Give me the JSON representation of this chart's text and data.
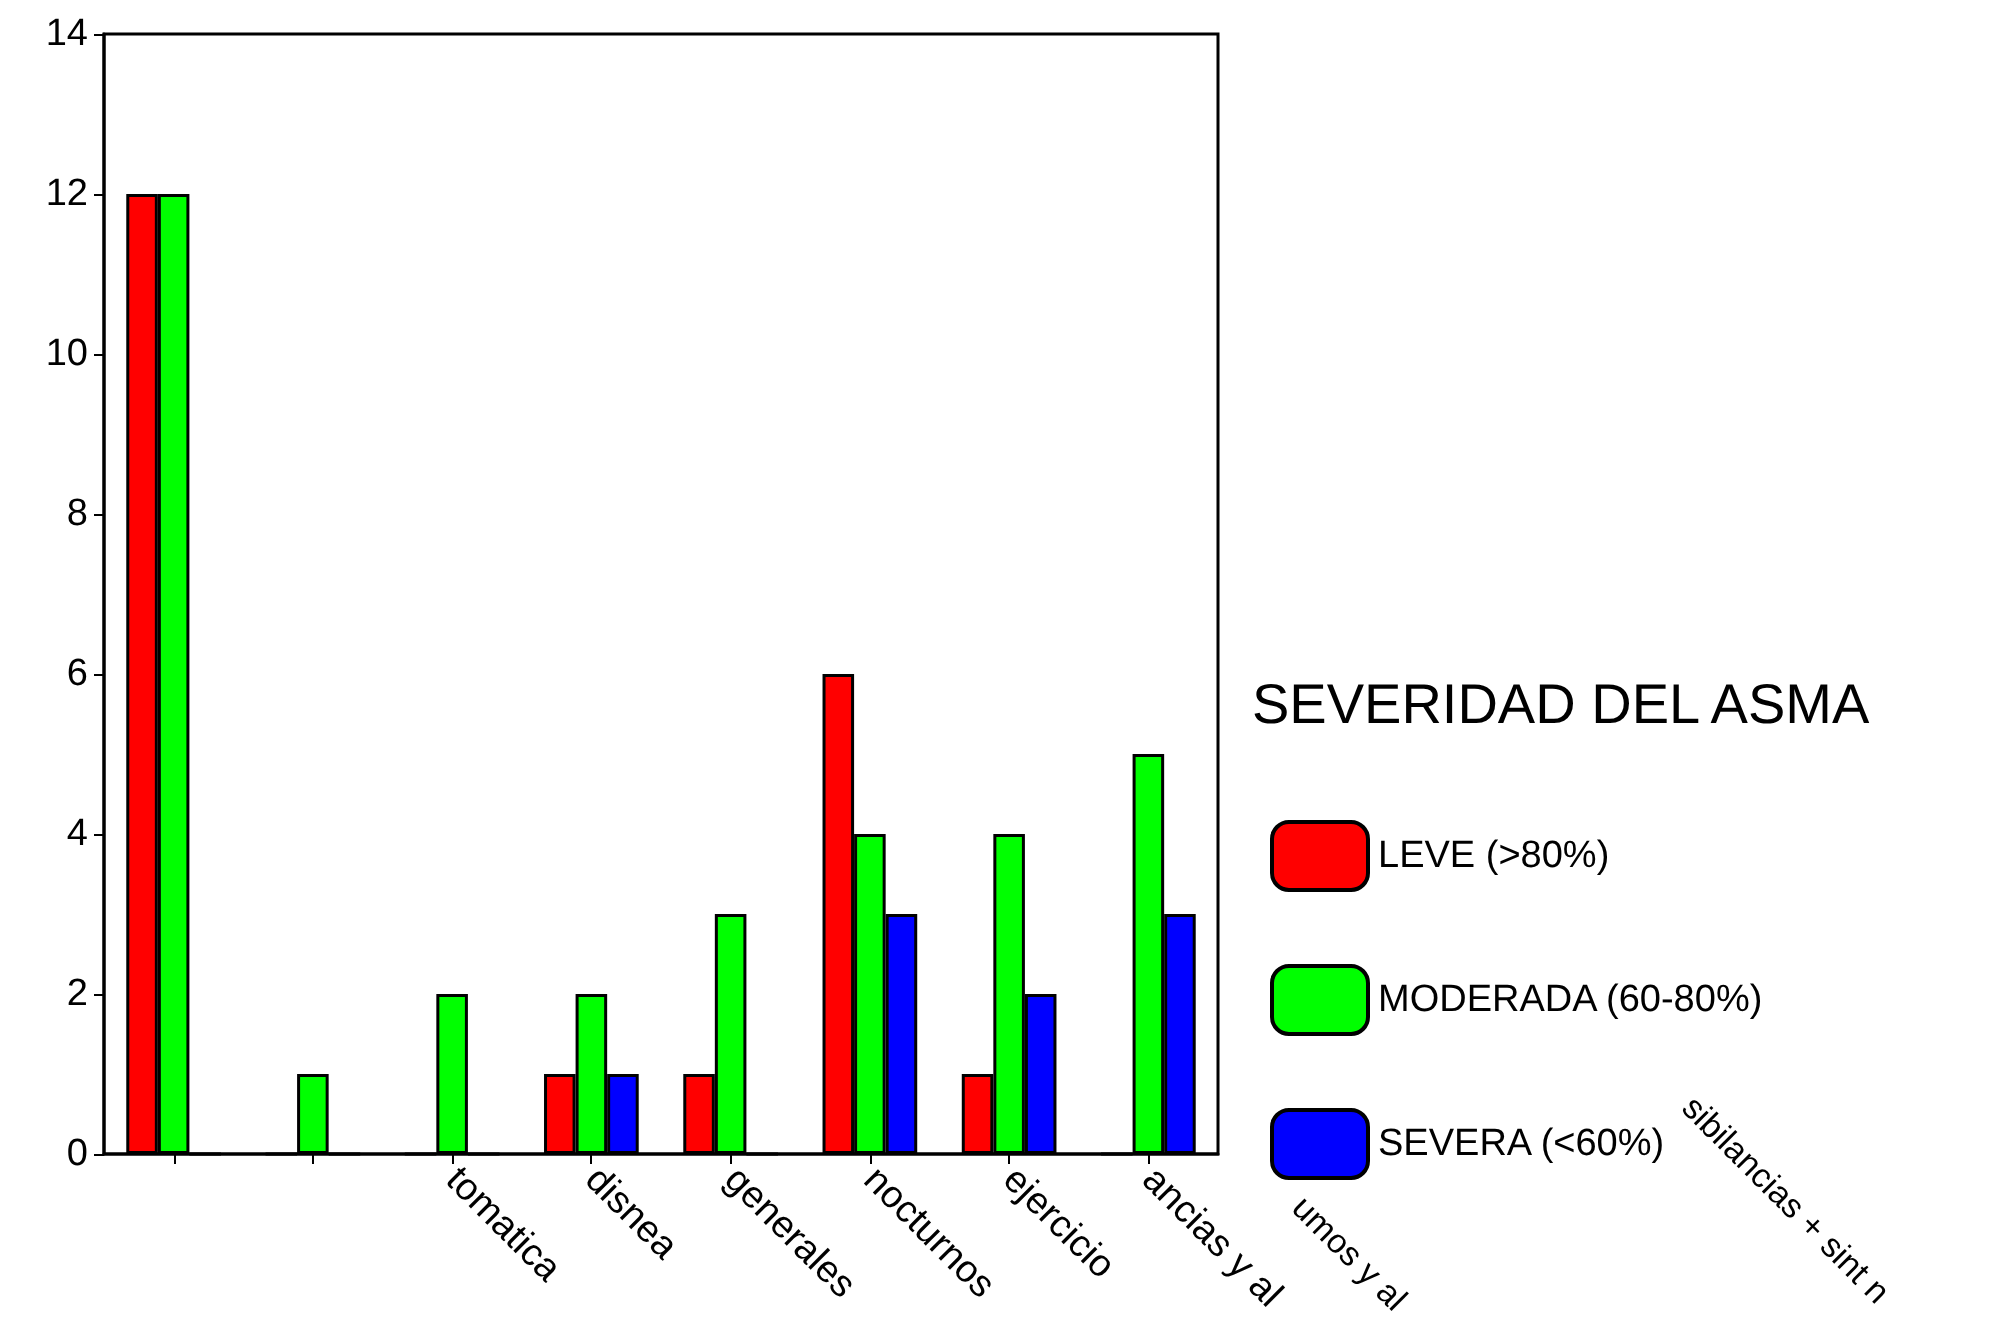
{
  "chart_data": {
    "type": "bar",
    "categories": [
      null,
      null,
      "tomatica",
      "disnea",
      "generales",
      "nocturnos",
      "ejercicio",
      "ancias y al"
    ],
    "series": [
      {
        "name": "LEVE (>80%)",
        "color": "#ff0000",
        "values": [
          12,
          0,
          0,
          1,
          1,
          6,
          1,
          0
        ]
      },
      {
        "name": "MODERADA (60-80%)",
        "color": "#00ff00",
        "values": [
          12,
          1,
          2,
          2,
          3,
          4,
          4,
          5
        ]
      },
      {
        "name": "SEVERA (<60%)",
        "color": "#0000ff",
        "values": [
          0,
          0,
          0,
          1,
          0,
          3,
          2,
          3
        ]
      }
    ],
    "ylim": [
      0,
      14
    ],
    "yticks": [
      0,
      2,
      4,
      6,
      8,
      10,
      12,
      14
    ],
    "grid": false,
    "legend": "right",
    "legend_title": "SEVERIDAD DEL ASMA",
    "annotations": [
      "umos y al",
      "sibilancias + sint n"
    ]
  }
}
